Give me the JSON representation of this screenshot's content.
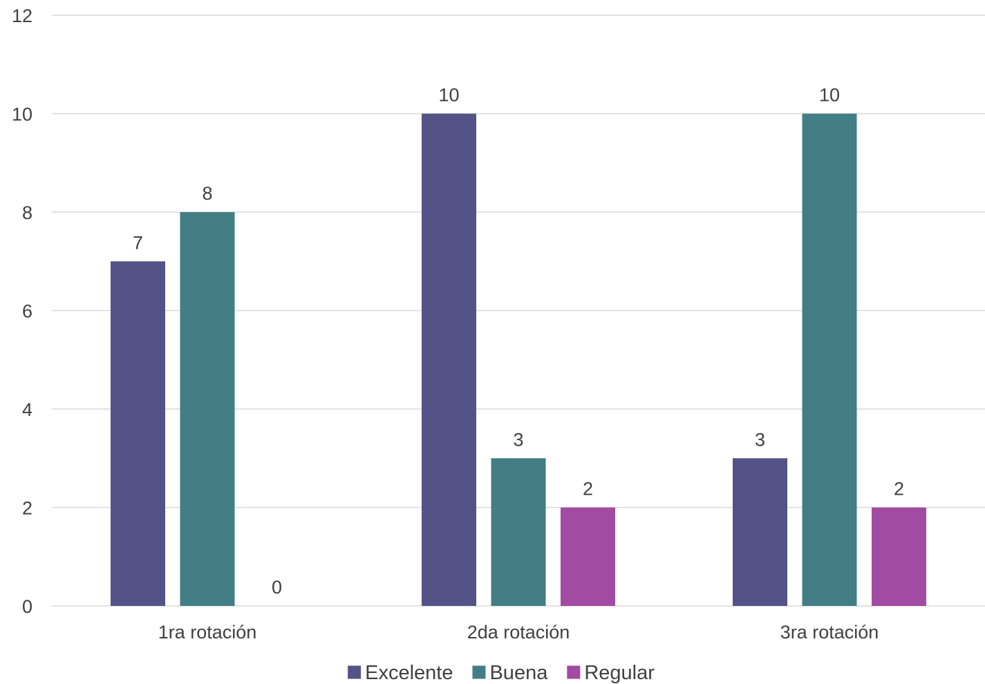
{
  "chart_data": {
    "type": "bar",
    "categories": [
      "1ra rotación",
      "2da rotación",
      "3ra rotación"
    ],
    "series": [
      {
        "name": "Excelente",
        "values": [
          7,
          10,
          3
        ],
        "color": "#545387"
      },
      {
        "name": "Buena",
        "values": [
          8,
          3,
          10
        ],
        "color": "#427E83"
      },
      {
        "name": "Regular",
        "values": [
          0,
          2,
          2
        ],
        "color": "#A24BA2"
      }
    ],
    "ylim": [
      0,
      12
    ],
    "yticks": [
      0,
      2,
      4,
      6,
      8,
      10,
      12
    ],
    "grid": true,
    "legend": "bottom"
  }
}
